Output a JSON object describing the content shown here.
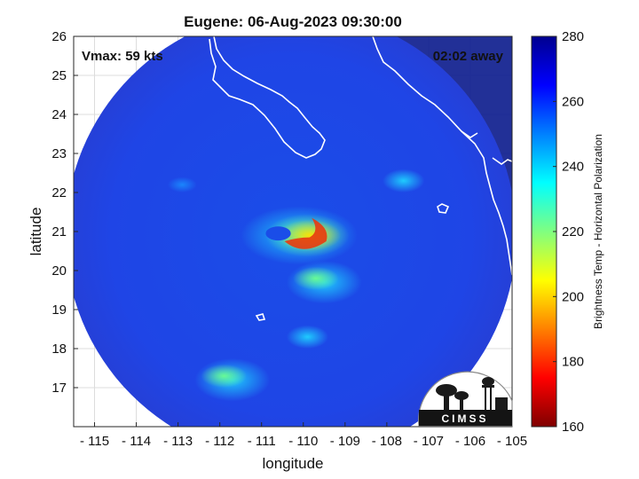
{
  "chart_data": {
    "type": "heatmap",
    "title": "Eugene: 06-Aug-2023 09:30:00",
    "xlabel": "longitude",
    "ylabel": "latitude",
    "xlim": [
      -115.5,
      -105
    ],
    "ylim": [
      16,
      26
    ],
    "xticks": [
      -115,
      -114,
      -113,
      -112,
      -111,
      -110,
      -109,
      -108,
      -107,
      -106,
      -105
    ],
    "yticks": [
      17,
      18,
      19,
      20,
      21,
      22,
      23,
      24,
      25,
      26
    ],
    "grid": true,
    "annotations": {
      "vmax": "Vmax: 59 kts",
      "away": "02:02 away"
    },
    "colorbar": {
      "label": "Brightness Temp - Horizontal Polarization",
      "range": [
        160,
        280
      ],
      "ticks": [
        160,
        180,
        200,
        220,
        240,
        260,
        280
      ],
      "colormap": [
        "#7f0000",
        "#ff0000",
        "#ff8000",
        "#ffff00",
        "#80ff80",
        "#00ffff",
        "#0080ff",
        "#0000ff",
        "#00008f"
      ]
    },
    "swath": {
      "center_lon": -110.3,
      "center_lat": 20.9,
      "radius_deg": 5.4
    },
    "features": [
      {
        "name": "storm-core",
        "lon": -109.9,
        "lat": 20.9,
        "value": 175
      },
      {
        "name": "rain-band-south",
        "lon": -109.5,
        "lat": 19.7,
        "value": 222
      },
      {
        "name": "band-far-south",
        "lon": -111.7,
        "lat": 17.2,
        "value": 218
      },
      {
        "name": "spot-west",
        "lon": -112.9,
        "lat": 22.2,
        "value": 246
      },
      {
        "name": "spot-northeast",
        "lon": -107.6,
        "lat": 22.3,
        "value": 240
      },
      {
        "name": "band-lower",
        "lon": -109.9,
        "lat": 18.3,
        "value": 235
      }
    ],
    "logo": "CIMSS"
  }
}
